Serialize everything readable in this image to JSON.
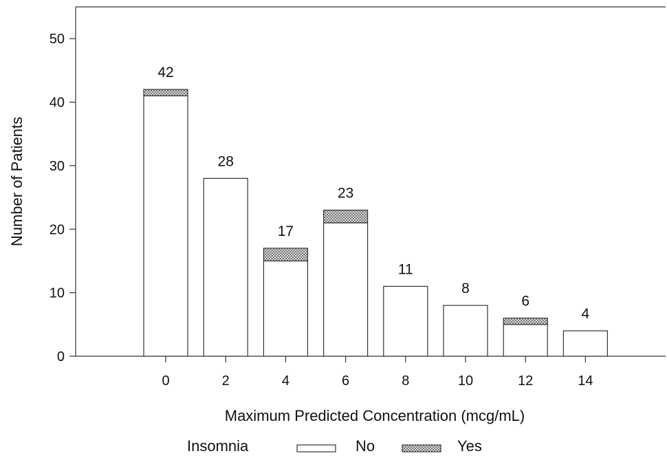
{
  "chart_data": {
    "type": "bar",
    "stacked": true,
    "categories": [
      "0",
      "2",
      "4",
      "6",
      "8",
      "10",
      "12",
      "14"
    ],
    "series": [
      {
        "name": "No",
        "values": [
          41,
          28,
          15,
          21,
          11,
          8,
          5,
          4
        ]
      },
      {
        "name": "Yes",
        "values": [
          1,
          0,
          2,
          2,
          0,
          0,
          1,
          0
        ]
      }
    ],
    "totals": [
      42,
      28,
      17,
      23,
      11,
      8,
      6,
      4
    ],
    "xlabel": "Maximum Predicted Concentration (mcg/mL)",
    "ylabel": "Number of Patients",
    "ylim": [
      0,
      55
    ],
    "yticks": [
      0,
      10,
      20,
      30,
      40,
      50
    ],
    "grid": false,
    "legend": {
      "title": "Insomnia",
      "position": "bottom",
      "entries": [
        "No",
        "Yes"
      ]
    },
    "colors": {
      "no": "#ffffff",
      "yes_hatch": "#555555",
      "outline": "#333333"
    }
  }
}
